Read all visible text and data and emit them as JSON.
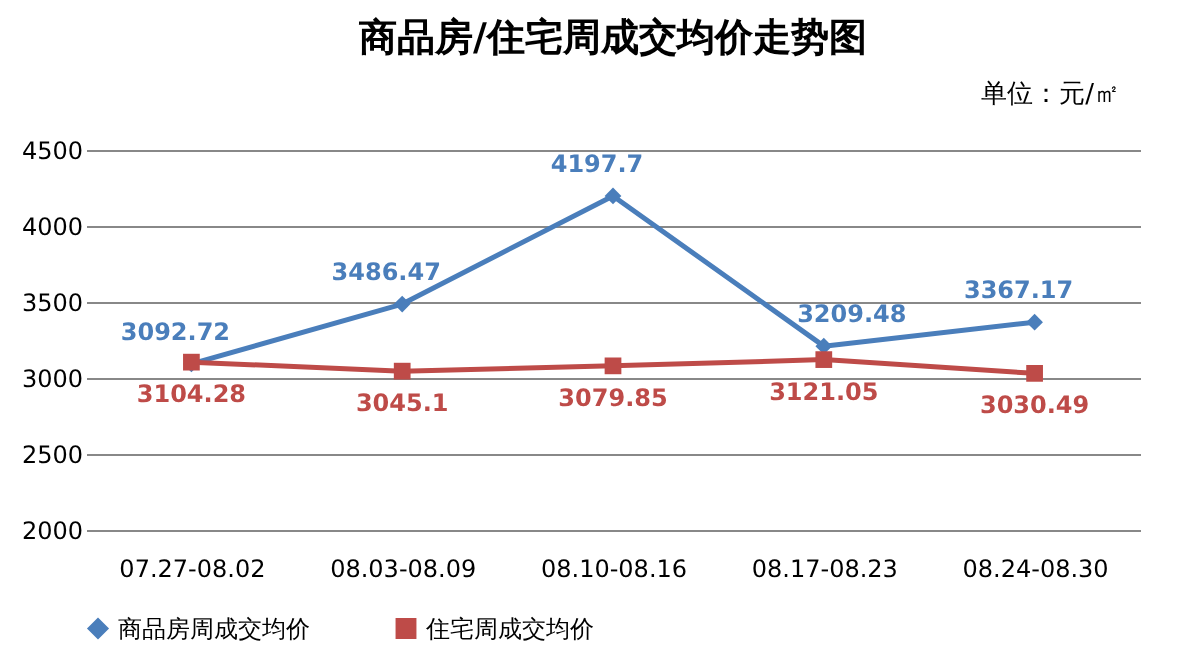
{
  "chart_data": {
    "type": "line",
    "title": "商品房/住宅周成交均价走势图",
    "annotations": [
      "单位：元/㎡"
    ],
    "categories": [
      "07.27-08.02",
      "08.03-08.09",
      "08.10-08.16",
      "08.17-08.23",
      "08.24-08.30"
    ],
    "series": [
      {
        "name": "商品房周成交均价",
        "color": "#4a7ebb",
        "marker": "diamond",
        "values": [
          3092.72,
          3486.47,
          4197.7,
          3209.48,
          3367.17
        ]
      },
      {
        "name": "住宅周成交均价",
        "color": "#be4b48",
        "marker": "square",
        "values": [
          3104.28,
          3045.1,
          3079.85,
          3121.05,
          3030.49
        ]
      }
    ],
    "ylim": [
      2000,
      4500
    ],
    "yticks": [
      2000,
      2500,
      3000,
      3500,
      4000,
      4500
    ],
    "grid": "y",
    "legend": "bottom",
    "data_labels": true
  }
}
